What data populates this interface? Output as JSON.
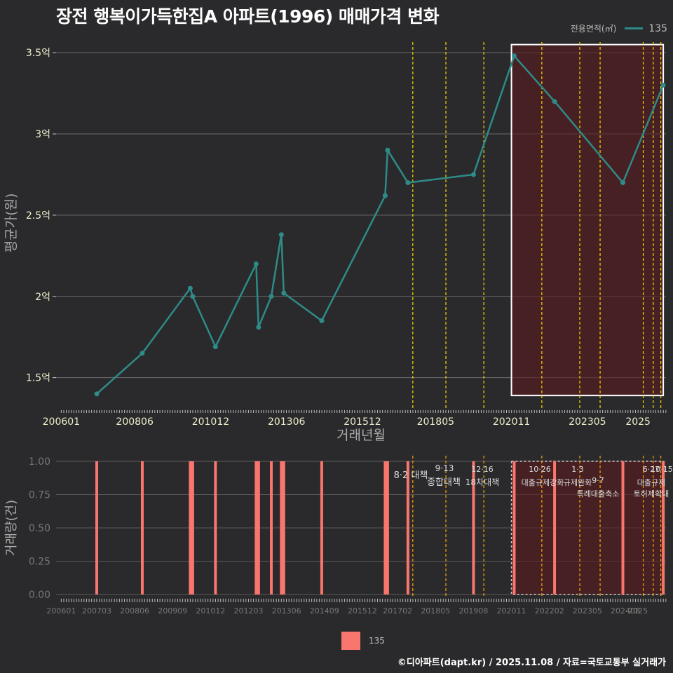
{
  "title": "장전 행복이가득한집A 아파트(1996) 매매가격 변화",
  "legend_top": {
    "title": "전용면적(㎡)",
    "value": "135"
  },
  "legend_bottom": {
    "value": "135"
  },
  "footer": "©디아파트(dapt.kr) / 2025.11.08 / 자료=국토교통부 실거래가",
  "colors": {
    "line": "#2e8b87",
    "bar": "#f8766d",
    "policy": "#ffd700",
    "policy_bottom": "#ffa500",
    "highlight": "#5a1a1e"
  },
  "chart_data": [
    {
      "type": "line",
      "title": "장전 행복이가득한집A 아파트(1996) 매매가격 변화",
      "xlabel": "거래년월",
      "ylabel": "평균가(원)",
      "ylim": [
        1.3,
        3.6
      ],
      "yticks": [
        1.5,
        2.0,
        2.5,
        3.0,
        3.5
      ],
      "ytick_labels": [
        "1.5억",
        "2억",
        "2.5억",
        "3억",
        "3.5억"
      ],
      "xtick_labels": [
        "200601",
        "200806",
        "201012",
        "201306",
        "201512",
        "201805",
        "202011",
        "202305",
        "2025"
      ],
      "xtick_positions": [
        2006.0,
        2008.42,
        2010.92,
        2013.42,
        2015.92,
        2018.33,
        2020.83,
        2023.33,
        2025.0
      ],
      "series": [
        {
          "name": "135",
          "x": [
            2007.17,
            2008.67,
            2010.25,
            2010.33,
            2011.08,
            2012.42,
            2012.5,
            2012.92,
            2013.25,
            2013.33,
            2014.58,
            2016.67,
            2016.75,
            2017.42,
            2019.58,
            2020.92,
            2022.25,
            2024.5,
            2025.83
          ],
          "y": [
            1.4,
            1.65,
            2.05,
            2.0,
            1.69,
            2.2,
            1.81,
            2.0,
            2.38,
            2.02,
            1.85,
            2.62,
            2.9,
            2.7,
            2.75,
            3.48,
            3.2,
            2.7,
            3.3
          ]
        }
      ],
      "policy_dates": [
        2017.58,
        2018.67,
        2019.92,
        2021.83,
        2023.08,
        2023.75,
        2025.17,
        2025.5,
        2025.75
      ],
      "highlight_range": [
        2020.83,
        2025.83
      ]
    },
    {
      "type": "bar",
      "xlabel": "",
      "ylabel": "거래량(건)",
      "ylim": [
        0,
        1.0
      ],
      "yticks": [
        0,
        0.25,
        0.5,
        0.75,
        1.0
      ],
      "ytick_labels": [
        "0.00",
        "0.25",
        "0.50",
        "0.75",
        "1.00"
      ],
      "xtick_labels": [
        "200601",
        "200703",
        "200806",
        "200909",
        "201012",
        "201203",
        "201306",
        "201409",
        "201512",
        "201702",
        "201805",
        "201908",
        "202011",
        "202202",
        "202305",
        "202408",
        "2025"
      ],
      "xtick_positions": [
        2006.0,
        2007.17,
        2008.42,
        2009.67,
        2010.92,
        2012.17,
        2013.42,
        2014.67,
        2015.92,
        2017.08,
        2018.33,
        2019.58,
        2020.83,
        2022.08,
        2023.33,
        2024.58,
        2025.0
      ],
      "series": [
        {
          "name": "135",
          "x": [
            2007.17,
            2008.67,
            2010.25,
            2010.33,
            2011.08,
            2012.42,
            2012.5,
            2012.92,
            2013.25,
            2013.33,
            2014.58,
            2016.67,
            2016.75,
            2017.42,
            2019.58,
            2020.92,
            2022.25,
            2024.5,
            2025.83
          ],
          "values": [
            1,
            1,
            1,
            1,
            1,
            1,
            1,
            1,
            1,
            1,
            1,
            1,
            1,
            1,
            1,
            1,
            1,
            1,
            1
          ]
        }
      ],
      "annotations": [
        "8·2 대책",
        "9·13",
        "종합대책",
        "12·16",
        "18차대책",
        "10·26",
        "대출규제강화",
        "1·3",
        "규제완화",
        "9·7",
        "특례대출축소",
        "6·27",
        "대출규제",
        "10·15",
        "토허제확대"
      ],
      "highlight_range": [
        2020.83,
        2025.83
      ]
    }
  ]
}
